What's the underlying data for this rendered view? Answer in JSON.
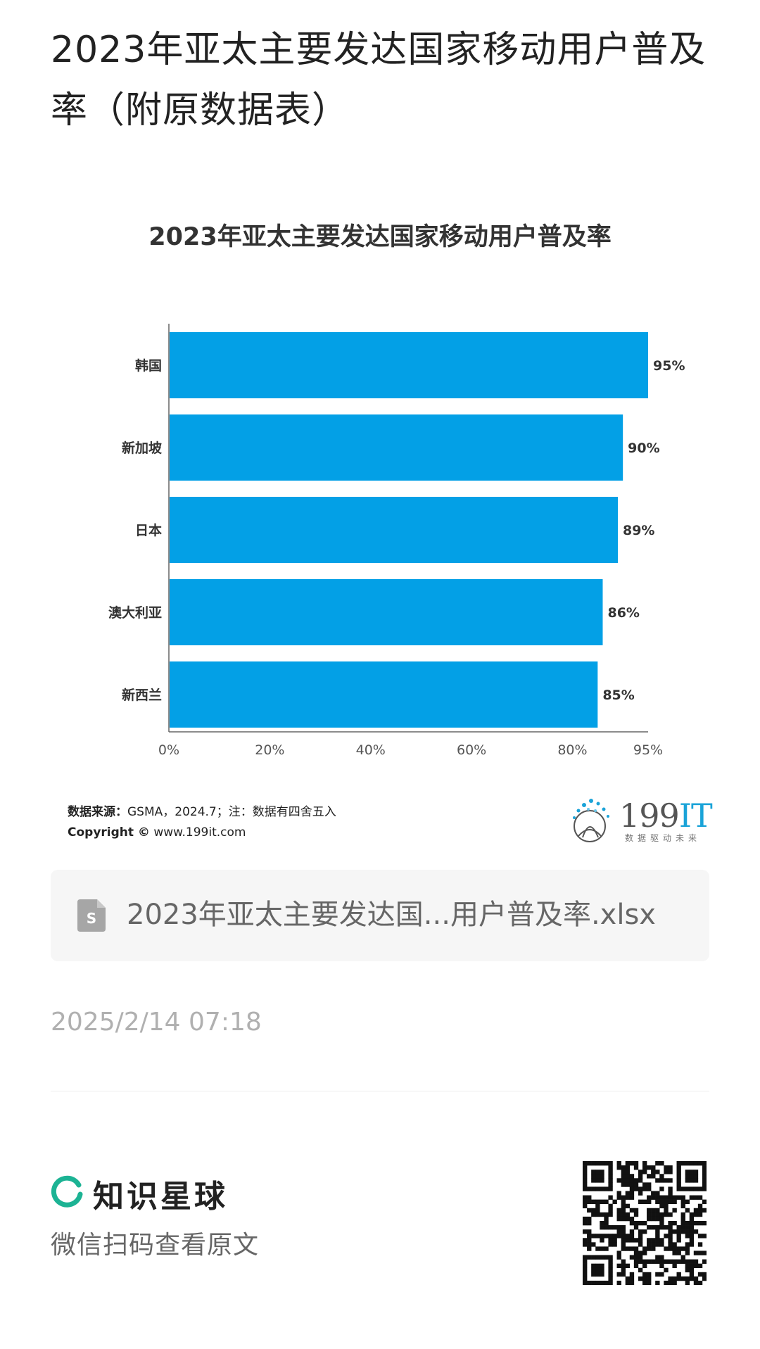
{
  "page": {
    "title": "2023年亚太主要发达国家移动用户普及率（附原数据表）"
  },
  "chart_data": {
    "type": "bar",
    "orientation": "horizontal",
    "title": "2023年亚太主要发达国家移动用户普及率",
    "categories": [
      "韩国",
      "新加坡",
      "日本",
      "澳大利亚",
      "新西兰"
    ],
    "values": [
      95,
      90,
      89,
      86,
      85
    ],
    "value_labels": [
      "95%",
      "90%",
      "89%",
      "86%",
      "85%"
    ],
    "xticks": [
      "0%",
      "20%",
      "40%",
      "60%",
      "80%",
      "95%"
    ],
    "xtick_values": [
      0,
      20,
      40,
      60,
      80,
      95
    ],
    "xlim": [
      0,
      95
    ],
    "bar_color": "#03a0e6",
    "grid": false,
    "xlabel": "",
    "ylabel": ""
  },
  "source": {
    "label": "数据来源：",
    "text": "GSMA，2024.7；注：数据有四舍五入",
    "copyright_label": "Copyright ©",
    "copyright_site": "www.199it.com"
  },
  "logo": {
    "number": "199",
    "suffix": "IT",
    "tagline": "数据驱动未来"
  },
  "attachment": {
    "icon": "spreadsheet-file-icon",
    "filename": "2023年亚太主要发达国...用户普及率.xlsx"
  },
  "meta": {
    "timestamp": "2025/2/14 07:18"
  },
  "footer": {
    "brand": "知识星球",
    "hint": "微信扫码查看原文",
    "brand_color": "#1cb394",
    "icon": "zsxq-logo-icon",
    "qr": "qr-code-icon"
  }
}
